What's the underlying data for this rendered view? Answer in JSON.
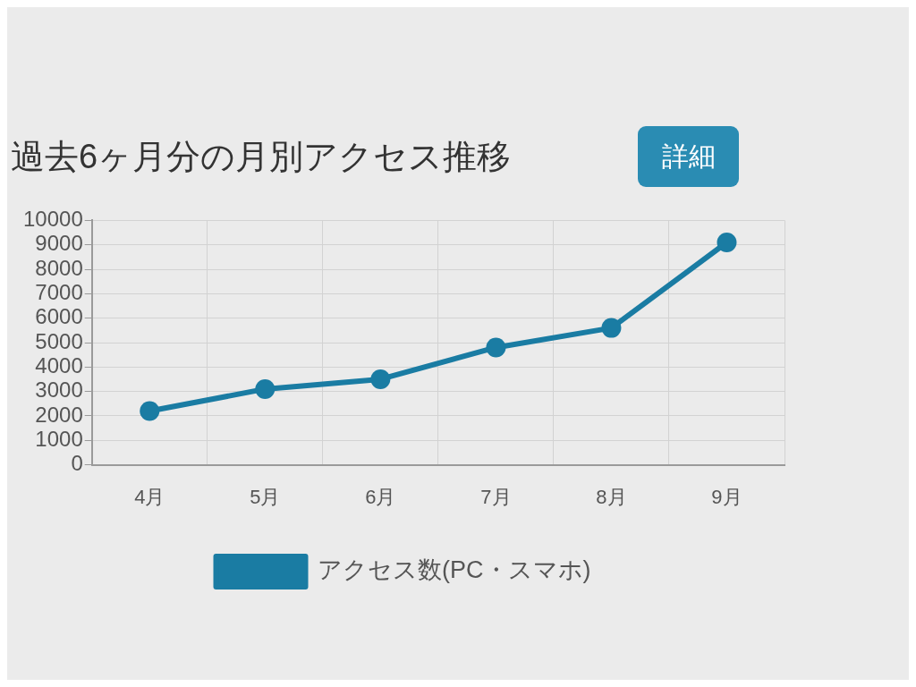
{
  "chart_data": {
    "type": "line",
    "title": "過去6ヶ月分の月別アクセス推移",
    "annotations": [
      "詳細"
    ],
    "categories": [
      "4月",
      "5月",
      "6月",
      "7月",
      "8月",
      "9月"
    ],
    "series": [
      {
        "name": "アクセス数(PC・スマホ)",
        "color": "#1a7ca3",
        "values": [
          2200,
          3100,
          3500,
          4800,
          5600,
          9100
        ]
      }
    ],
    "ylim": [
      0,
      10000
    ],
    "yticks": [
      0,
      1000,
      2000,
      3000,
      4000,
      5000,
      6000,
      7000,
      8000,
      9000,
      10000
    ],
    "grid": true,
    "legend": "bottom",
    "marker": "circle",
    "line_style": "solid"
  }
}
